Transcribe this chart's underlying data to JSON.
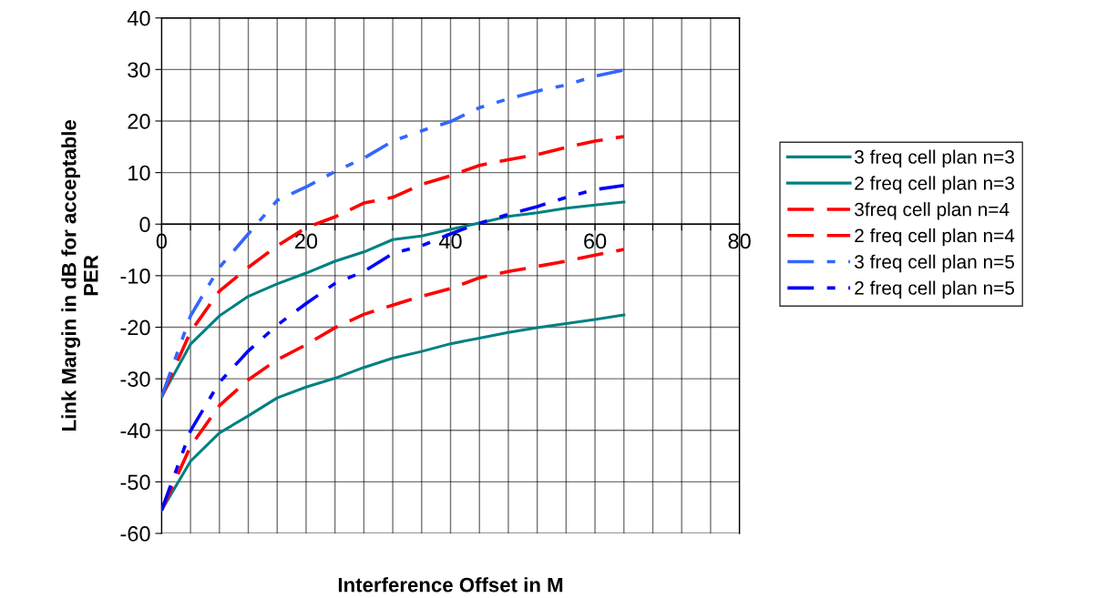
{
  "chart_data": {
    "type": "line",
    "xlabel": "Interference Offset in M",
    "ylabel": "Link Margin in dB for acceptable\nPER",
    "x": [
      0,
      4,
      8,
      12,
      16,
      20,
      24,
      28,
      32,
      36,
      40,
      44,
      48,
      52,
      56,
      60,
      64
    ],
    "series": [
      {
        "name": "3 freq cell plan n=3",
        "color": "#008080",
        "line_style": "solid",
        "values": [
          -33.5,
          -23.3,
          -17.8,
          -14.0,
          -11.6,
          -9.5,
          -7.2,
          -5.4,
          -3.0,
          -2.3,
          -1.0,
          0.2,
          1.5,
          2.2,
          3.1,
          3.7,
          4.3
        ]
      },
      {
        "name": "2 freq cell plan n=3",
        "color": "#008080",
        "line_style": "solid",
        "values": [
          -55.5,
          -46.0,
          -40.5,
          -37.2,
          -33.7,
          -31.6,
          -29.9,
          -27.8,
          -26.0,
          -24.7,
          -23.2,
          -22.1,
          -21.0,
          -20.1,
          -19.3,
          -18.5,
          -17.6
        ]
      },
      {
        "name": "3freq cell plan n=4",
        "color": "#ff0000",
        "line_style": "dashed",
        "values": [
          -33.5,
          -20.9,
          -13.0,
          -8.4,
          -4.2,
          -0.7,
          1.4,
          4.1,
          5.2,
          7.7,
          9.4,
          11.4,
          12.5,
          13.5,
          14.9,
          16.1,
          17.0
        ]
      },
      {
        "name": "2 freq cell plan n=4",
        "color": "#ff0000",
        "line_style": "dashed",
        "values": [
          -55.5,
          -43.1,
          -35.2,
          -30.2,
          -26.3,
          -23.4,
          -20.1,
          -17.5,
          -15.7,
          -14.0,
          -12.5,
          -10.4,
          -9.2,
          -8.2,
          -7.2,
          -6.0,
          -4.9
        ]
      },
      {
        "name": "3 freq cell plan n=5",
        "color": "#3366ff",
        "line_style": "dotted",
        "values": [
          -33.5,
          -17.8,
          -8.4,
          -1.9,
          4.6,
          7.2,
          10.2,
          12.8,
          16.1,
          18.1,
          19.9,
          22.6,
          24.3,
          25.8,
          27.0,
          28.7,
          29.9
        ]
      },
      {
        "name": "2 freq cell plan n=5",
        "color": "#0000ff",
        "line_style": "dotted",
        "values": [
          -55.5,
          -40.1,
          -30.7,
          -24.6,
          -19.6,
          -15.4,
          -11.5,
          -9.2,
          -5.7,
          -4.2,
          -1.9,
          0.2,
          1.9,
          3.4,
          5.2,
          6.7,
          7.5
        ]
      }
    ],
    "xlim": [
      0,
      80
    ],
    "xticks": [
      0,
      {
        "value": 4,
        "label": null
      },
      {
        "value": 8,
        "label": null
      },
      {
        "value": 12,
        "label": null
      },
      {
        "value": 16,
        "label": null
      },
      20,
      {
        "value": 24,
        "label": null
      },
      {
        "value": 28,
        "label": null
      },
      {
        "value": 32,
        "label": null
      },
      {
        "value": 36,
        "label": null
      },
      40,
      {
        "value": 44,
        "label": null
      },
      {
        "value": 48,
        "label": null
      },
      {
        "value": 52,
        "label": null
      },
      {
        "value": 56,
        "label": null
      },
      60,
      {
        "value": 64,
        "label": null
      },
      {
        "value": 68,
        "label": null
      },
      {
        "value": 72,
        "label": null
      },
      {
        "value": 76,
        "label": null
      },
      80
    ],
    "ylim": [
      -60,
      40
    ],
    "yticks": [
      -60,
      -50,
      -40,
      -30,
      -20,
      -10,
      0,
      10,
      20,
      30,
      40
    ],
    "grid": true,
    "legend": "right",
    "marker": "none"
  }
}
